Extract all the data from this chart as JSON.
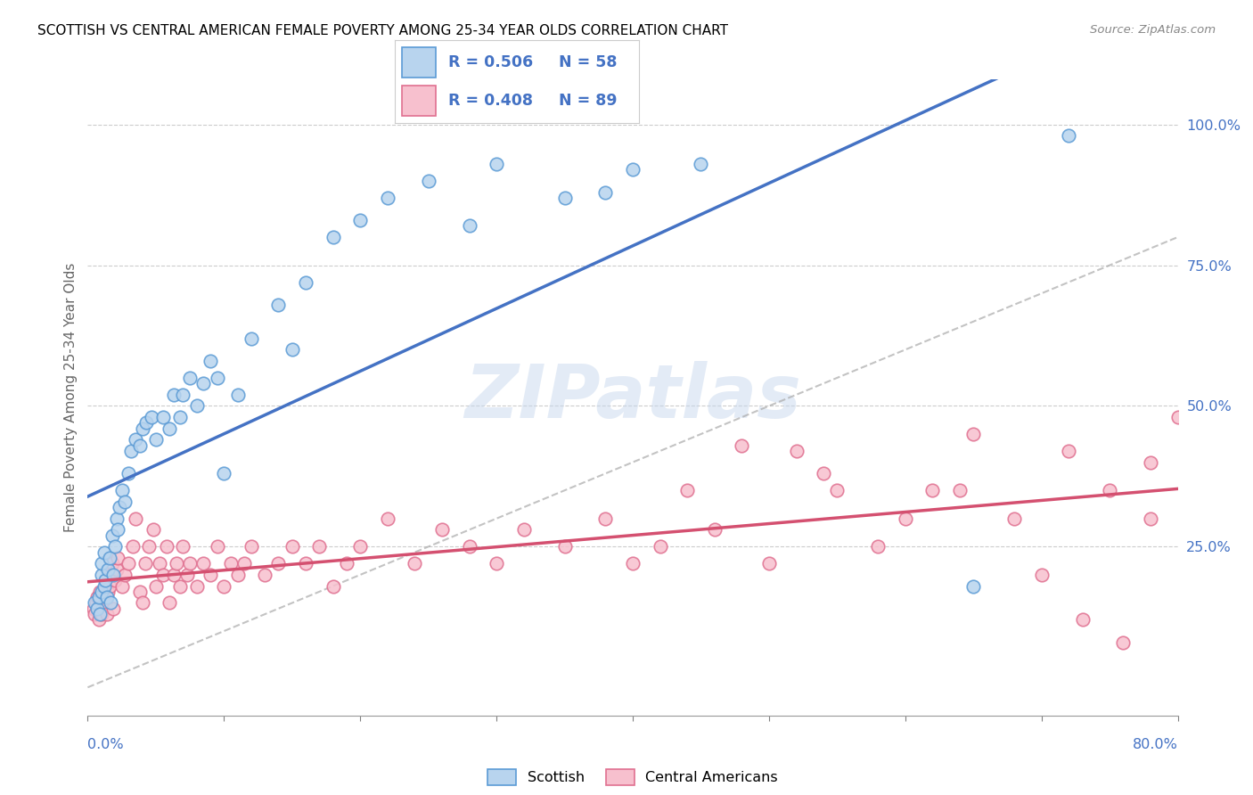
{
  "title": "SCOTTISH VS CENTRAL AMERICAN FEMALE POVERTY AMONG 25-34 YEAR OLDS CORRELATION CHART",
  "source": "Source: ZipAtlas.com",
  "ylabel": "Female Poverty Among 25-34 Year Olds",
  "xlim": [
    0.0,
    0.8
  ],
  "ylim": [
    -0.05,
    1.08
  ],
  "color_scottish_fill": "#b8d4ee",
  "color_scottish_edge": "#5b9bd5",
  "color_scottish_line": "#4472c4",
  "color_ca_fill": "#f7c0ce",
  "color_ca_edge": "#e07090",
  "color_ca_line": "#d45070",
  "color_text_blue": "#4472c4",
  "color_grid": "#cccccc",
  "watermark_zip": "ZIP",
  "watermark_atlas": "atlas",
  "r1": "0.506",
  "n1": "58",
  "r2": "0.408",
  "n2": "89",
  "scottish_x": [
    0.005,
    0.007,
    0.008,
    0.009,
    0.01,
    0.01,
    0.01,
    0.012,
    0.012,
    0.013,
    0.014,
    0.015,
    0.016,
    0.017,
    0.018,
    0.019,
    0.02,
    0.021,
    0.022,
    0.023,
    0.025,
    0.027,
    0.03,
    0.032,
    0.035,
    0.038,
    0.04,
    0.043,
    0.047,
    0.05,
    0.055,
    0.06,
    0.063,
    0.068,
    0.07,
    0.075,
    0.08,
    0.085,
    0.09,
    0.095,
    0.1,
    0.11,
    0.12,
    0.14,
    0.15,
    0.16,
    0.18,
    0.2,
    0.22,
    0.25,
    0.28,
    0.3,
    0.35,
    0.38,
    0.4,
    0.45,
    0.65,
    0.72
  ],
  "scottish_y": [
    0.15,
    0.14,
    0.16,
    0.13,
    0.17,
    0.2,
    0.22,
    0.18,
    0.24,
    0.19,
    0.16,
    0.21,
    0.23,
    0.15,
    0.27,
    0.2,
    0.25,
    0.3,
    0.28,
    0.32,
    0.35,
    0.33,
    0.38,
    0.42,
    0.44,
    0.43,
    0.46,
    0.47,
    0.48,
    0.44,
    0.48,
    0.46,
    0.52,
    0.48,
    0.52,
    0.55,
    0.5,
    0.54,
    0.58,
    0.55,
    0.38,
    0.52,
    0.62,
    0.68,
    0.6,
    0.72,
    0.8,
    0.83,
    0.87,
    0.9,
    0.82,
    0.93,
    0.87,
    0.88,
    0.92,
    0.93,
    0.18,
    0.98
  ],
  "ca_x": [
    0.004,
    0.005,
    0.006,
    0.007,
    0.008,
    0.009,
    0.01,
    0.01,
    0.011,
    0.012,
    0.013,
    0.014,
    0.015,
    0.016,
    0.017,
    0.018,
    0.019,
    0.02,
    0.021,
    0.022,
    0.025,
    0.027,
    0.03,
    0.033,
    0.035,
    0.038,
    0.04,
    0.042,
    0.045,
    0.048,
    0.05,
    0.053,
    0.055,
    0.058,
    0.06,
    0.063,
    0.065,
    0.068,
    0.07,
    0.073,
    0.075,
    0.08,
    0.085,
    0.09,
    0.095,
    0.1,
    0.105,
    0.11,
    0.115,
    0.12,
    0.13,
    0.14,
    0.15,
    0.16,
    0.17,
    0.18,
    0.19,
    0.2,
    0.22,
    0.24,
    0.26,
    0.28,
    0.3,
    0.32,
    0.35,
    0.38,
    0.4,
    0.42,
    0.44,
    0.46,
    0.5,
    0.52,
    0.55,
    0.58,
    0.62,
    0.65,
    0.7,
    0.73,
    0.76,
    0.78,
    0.48,
    0.54,
    0.6,
    0.64,
    0.68,
    0.72,
    0.75,
    0.78,
    0.8
  ],
  "ca_y": [
    0.14,
    0.13,
    0.15,
    0.16,
    0.12,
    0.17,
    0.13,
    0.15,
    0.14,
    0.16,
    0.15,
    0.13,
    0.17,
    0.18,
    0.2,
    0.22,
    0.14,
    0.19,
    0.21,
    0.23,
    0.18,
    0.2,
    0.22,
    0.25,
    0.3,
    0.17,
    0.15,
    0.22,
    0.25,
    0.28,
    0.18,
    0.22,
    0.2,
    0.25,
    0.15,
    0.2,
    0.22,
    0.18,
    0.25,
    0.2,
    0.22,
    0.18,
    0.22,
    0.2,
    0.25,
    0.18,
    0.22,
    0.2,
    0.22,
    0.25,
    0.2,
    0.22,
    0.25,
    0.22,
    0.25,
    0.18,
    0.22,
    0.25,
    0.3,
    0.22,
    0.28,
    0.25,
    0.22,
    0.28,
    0.25,
    0.3,
    0.22,
    0.25,
    0.35,
    0.28,
    0.22,
    0.42,
    0.35,
    0.25,
    0.35,
    0.45,
    0.2,
    0.12,
    0.08,
    0.3,
    0.43,
    0.38,
    0.3,
    0.35,
    0.3,
    0.42,
    0.35,
    0.4,
    0.48
  ]
}
